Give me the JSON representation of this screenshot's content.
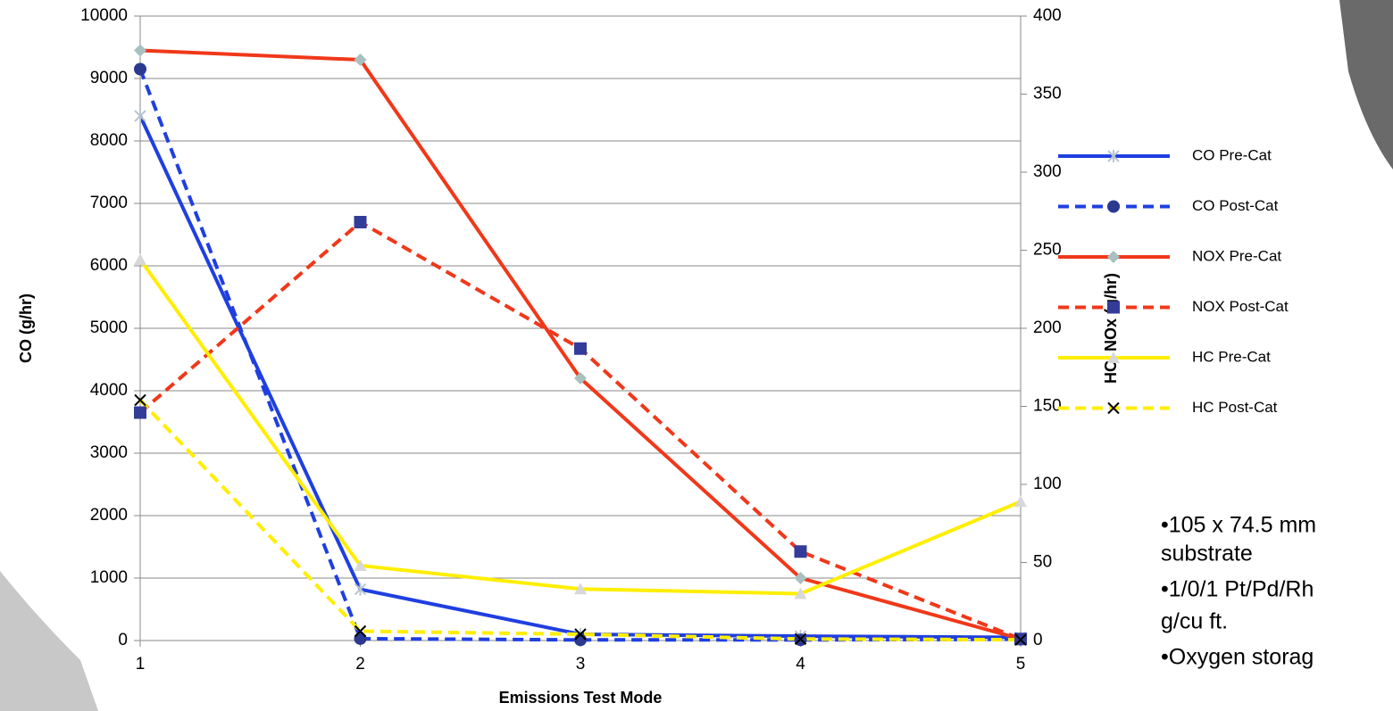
{
  "chart_data": {
    "type": "line",
    "x_label": "Emissions Test Mode",
    "y_label": "CO (g/hr)",
    "y2_label": "HC, NOx (g/hr)",
    "x": [
      1,
      2,
      3,
      4,
      5
    ],
    "xlim": [
      1,
      5
    ],
    "xticks": [
      1,
      2,
      3,
      4,
      5
    ],
    "ylim": [
      0,
      10000
    ],
    "yticks": [
      0,
      1000,
      2000,
      3000,
      4000,
      5000,
      6000,
      7000,
      8000,
      9000,
      10000
    ],
    "y2lim": [
      0,
      400
    ],
    "y2ticks": [
      0,
      50,
      100,
      150,
      200,
      250,
      300,
      350,
      400
    ],
    "grid": true,
    "legend": "right",
    "series": [
      {
        "name": "CO Pre-Cat",
        "color": "#1f3fe0",
        "dash": false,
        "marker": "star",
        "marker_color": "#b8c4d0",
        "values": [
          8400,
          820,
          100,
          70,
          50
        ]
      },
      {
        "name": "CO Post-Cat",
        "color": "#1f3fe0",
        "dash": true,
        "marker": "circle",
        "marker_color": "#2b3a8f",
        "values": [
          9150,
          30,
          10,
          10,
          20
        ]
      },
      {
        "name": "NOX Pre-Cat",
        "color": "#f0381a",
        "dash": false,
        "marker": "diamond",
        "marker_color": "#a8c0c0",
        "axis": "y2",
        "values": [
          378,
          372,
          168,
          40,
          1
        ]
      },
      {
        "name": "NOX Post-Cat",
        "color": "#f0381a",
        "dash": true,
        "marker": "square",
        "marker_color": "#333c99",
        "axis": "y2",
        "values": [
          146,
          268,
          187,
          57,
          1
        ]
      },
      {
        "name": "HC Pre-Cat",
        "color": "#ffee00",
        "dash": false,
        "marker": "triangle",
        "marker_color": "#d8d8d8",
        "axis": "y2",
        "values": [
          244,
          48,
          33,
          30,
          89
        ]
      },
      {
        "name": "HC Post-Cat",
        "color": "#ffee00",
        "dash": true,
        "marker": "x",
        "marker_color": "#000000",
        "axis": "y2",
        "values": [
          154,
          6,
          4,
          1,
          0.5
        ]
      }
    ]
  },
  "notes": [
    "•105 x 74.5 mm",
    "substrate",
    "•1/0/1 Pt/Pd/Rh",
    "g/cu ft.",
    "•Oxygen storag"
  ]
}
